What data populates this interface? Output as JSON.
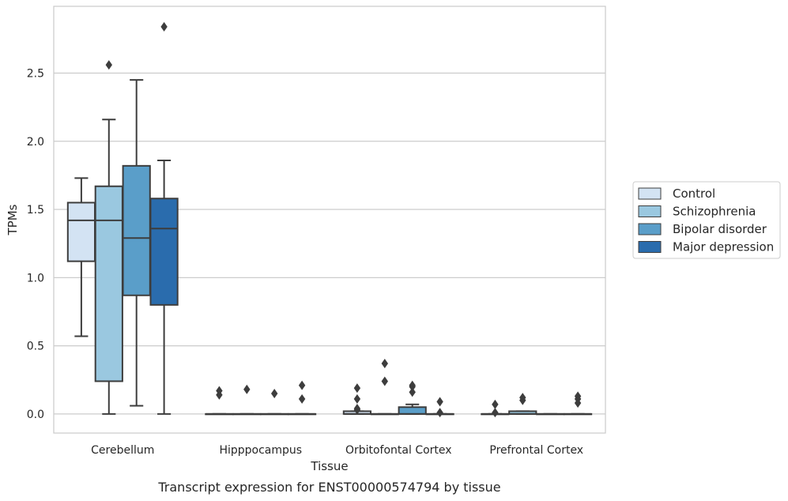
{
  "caption": "Transcript expression for ENST00000574794 by tissue",
  "chart_data": {
    "type": "box",
    "title": "",
    "xlabel": "Tissue",
    "ylabel": "TPMs",
    "ylim": [
      -0.14,
      2.99
    ],
    "yticks": [
      0.0,
      0.5,
      1.0,
      1.5,
      2.0,
      2.5
    ],
    "ytick_labels": [
      "0.0",
      "0.5",
      "1.0",
      "1.5",
      "2.0",
      "2.5"
    ],
    "grid": "horizontal",
    "legend_position": "right",
    "categories": [
      "Cerebellum",
      "Hipppocampus",
      "Orbitofontal Cortex",
      "Prefrontal Cortex"
    ],
    "series": [
      {
        "name": "Control",
        "color": "#d3e3f3",
        "boxes": [
          {
            "q1": 1.12,
            "median": 1.42,
            "q3": 1.55,
            "whisker_low": 0.57,
            "whisker_high": 1.73,
            "outliers": []
          },
          {
            "q1": 0.0,
            "median": 0.0,
            "q3": 0.0,
            "whisker_low": 0.0,
            "whisker_high": 0.0,
            "outliers": [
              0.14,
              0.17
            ]
          },
          {
            "q1": 0.0,
            "median": 0.0,
            "q3": 0.02,
            "whisker_low": 0.0,
            "whisker_high": 0.02,
            "outliers": [
              0.04,
              0.11,
              0.19,
              0.03
            ]
          },
          {
            "q1": 0.0,
            "median": 0.0,
            "q3": 0.0,
            "whisker_low": 0.0,
            "whisker_high": 0.0,
            "outliers": [
              0.01,
              0.07
            ]
          }
        ]
      },
      {
        "name": "Schizophrenia",
        "color": "#9ac8e0",
        "boxes": [
          {
            "q1": 0.24,
            "median": 1.42,
            "q3": 1.67,
            "whisker_low": 0.0,
            "whisker_high": 2.16,
            "outliers": [
              2.56
            ]
          },
          {
            "q1": 0.0,
            "median": 0.0,
            "q3": 0.0,
            "whisker_low": 0.0,
            "whisker_high": 0.0,
            "outliers": [
              0.18
            ]
          },
          {
            "q1": 0.0,
            "median": 0.0,
            "q3": 0.0,
            "whisker_low": 0.0,
            "whisker_high": 0.0,
            "outliers": [
              0.24,
              0.37
            ]
          },
          {
            "q1": 0.0,
            "median": 0.0,
            "q3": 0.02,
            "whisker_low": 0.0,
            "whisker_high": 0.02,
            "outliers": [
              0.1,
              0.12
            ]
          }
        ]
      },
      {
        "name": "Bipolar disorder",
        "color": "#5a9ec9",
        "boxes": [
          {
            "q1": 0.87,
            "median": 1.29,
            "q3": 1.82,
            "whisker_low": 0.06,
            "whisker_high": 2.45,
            "outliers": []
          },
          {
            "q1": 0.0,
            "median": 0.0,
            "q3": 0.0,
            "whisker_low": 0.0,
            "whisker_high": 0.0,
            "outliers": [
              0.15
            ]
          },
          {
            "q1": 0.0,
            "median": 0.0,
            "q3": 0.05,
            "whisker_low": 0.0,
            "whisker_high": 0.07,
            "outliers": [
              0.16,
              0.2,
              0.21
            ]
          },
          {
            "q1": 0.0,
            "median": 0.0,
            "q3": 0.0,
            "whisker_low": 0.0,
            "whisker_high": 0.0,
            "outliers": []
          }
        ]
      },
      {
        "name": "Major depression",
        "color": "#2a6cad",
        "boxes": [
          {
            "q1": 0.8,
            "median": 1.36,
            "q3": 1.58,
            "whisker_low": 0.0,
            "whisker_high": 1.86,
            "outliers": [
              2.84
            ]
          },
          {
            "q1": 0.0,
            "median": 0.0,
            "q3": 0.0,
            "whisker_low": 0.0,
            "whisker_high": 0.0,
            "outliers": [
              0.11,
              0.21
            ]
          },
          {
            "q1": 0.0,
            "median": 0.0,
            "q3": 0.0,
            "whisker_low": 0.0,
            "whisker_high": 0.0,
            "outliers": [
              0.01,
              0.09
            ]
          },
          {
            "q1": 0.0,
            "median": 0.0,
            "q3": 0.0,
            "whisker_low": 0.0,
            "whisker_high": 0.0,
            "outliers": [
              0.08,
              0.11,
              0.13
            ]
          }
        ]
      }
    ]
  }
}
